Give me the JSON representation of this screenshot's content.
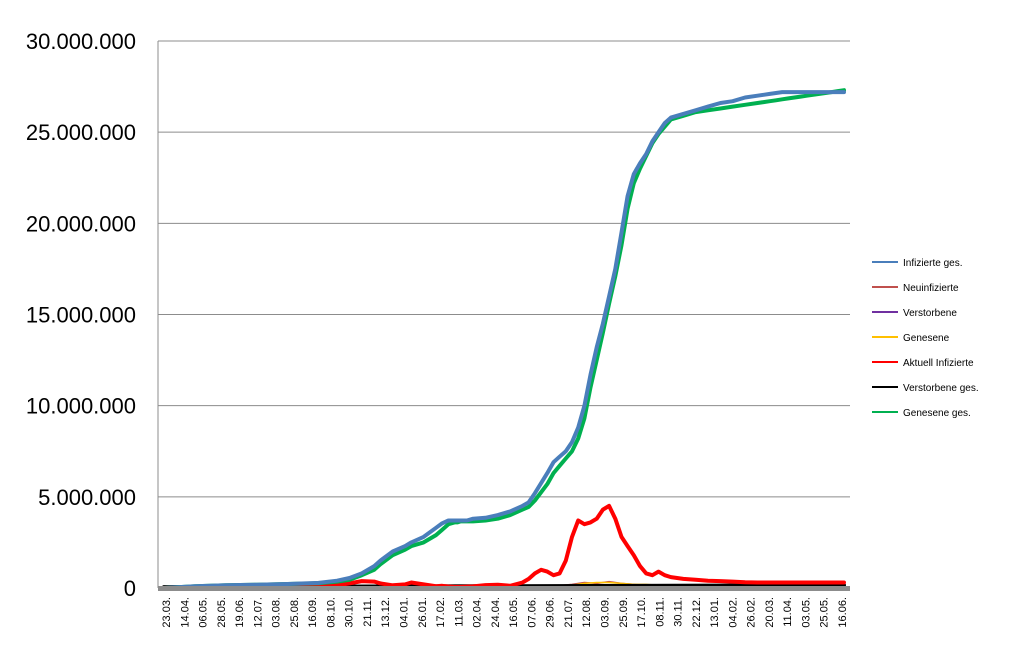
{
  "chart_data": {
    "type": "line",
    "title": "",
    "xlabel": "",
    "ylabel": "",
    "ylim": [
      0,
      30000000
    ],
    "grid": "horizontal",
    "legend_position": "right",
    "y_ticks": [
      {
        "value": 0,
        "label": "0"
      },
      {
        "value": 5000000,
        "label": "5.000.000"
      },
      {
        "value": 10000000,
        "label": "10.000.000"
      },
      {
        "value": 15000000,
        "label": "15.000.000"
      },
      {
        "value": 20000000,
        "label": "20.000.000"
      },
      {
        "value": 25000000,
        "label": "25.000.000"
      },
      {
        "value": 30000000,
        "label": "30.000.000"
      }
    ],
    "x_tick_labels": [
      "23.03.",
      "14.04.",
      "06.05.",
      "28.05.",
      "19.06.",
      "12.07.",
      "03.08.",
      "25.08.",
      "16.09.",
      "08.10.",
      "30.10.",
      "21.11.",
      "13.12.",
      "04.01.",
      "26.01.",
      "17.02.",
      "11.03.",
      "02.04.",
      "24.04.",
      "16.05.",
      "07.06.",
      "29.06.",
      "21.07.",
      "12.08.",
      "03.09.",
      "25.09.",
      "17.10.",
      "08.11.",
      "30.11.",
      "22.12.",
      "13.01.",
      "04.02.",
      "26.02.",
      "20.03.",
      "11.04.",
      "03.05.",
      "25.05.",
      "16.06."
    ],
    "series": [
      {
        "name": "Infizierte ges.",
        "color": "#4a7ebb",
        "x": [
          0,
          5,
          10,
          15,
          20,
          25,
          28,
          30,
          32,
          34,
          35,
          37,
          39,
          40,
          42,
          44,
          45,
          46,
          47,
          47.5,
          48,
          49,
          50,
          52,
          54,
          56,
          58,
          59,
          60,
          62,
          63,
          64,
          65,
          66,
          67,
          68,
          69,
          70,
          71,
          72,
          73,
          74,
          75,
          76,
          77,
          78,
          79,
          80,
          81,
          82,
          84,
          86,
          88,
          90,
          92,
          94,
          96,
          97,
          98,
          99,
          100,
          101,
          102,
          103,
          104,
          105,
          106,
          107,
          108,
          109,
          110
        ],
        "values": [
          0,
          100000,
          150000,
          180000,
          220000,
          280000,
          400000,
          550000,
          800000,
          1200000,
          1500000,
          2000000,
          2300000,
          2500000,
          2800000,
          3300000,
          3550000,
          3700000,
          3700000,
          3700000,
          3700000,
          3700000,
          3800000,
          3850000,
          4000000,
          4200000,
          4500000,
          4700000,
          5200000,
          6300000,
          6900000,
          7200000,
          7500000,
          8000000,
          8800000,
          10000000,
          11700000,
          13200000,
          14500000,
          16000000,
          17500000,
          19500000,
          21500000,
          22700000,
          23300000,
          23800000,
          24500000,
          25000000,
          25500000,
          25800000,
          26000000,
          26200000,
          26400000,
          26600000,
          26700000,
          26900000,
          27000000,
          27050000,
          27100000,
          27150000,
          27200000,
          27200000,
          27200000,
          27200000,
          27200000,
          27200000,
          27200000,
          27200000,
          27200000,
          27200000,
          27200000
        ]
      },
      {
        "name": "Genesene ges.",
        "color": "#00b050",
        "x": [
          0,
          5,
          10,
          15,
          20,
          25,
          28,
          30,
          32,
          34,
          35,
          37,
          39,
          40,
          42,
          44,
          45,
          46,
          47,
          47.5,
          48,
          49,
          50,
          52,
          54,
          56,
          58,
          59,
          60,
          62,
          63,
          64,
          65,
          66,
          67,
          68,
          69,
          70,
          71,
          72,
          73,
          74,
          75,
          76,
          77,
          78,
          79,
          80,
          81,
          82,
          84,
          86,
          88,
          90,
          92,
          94,
          96,
          97,
          98,
          99,
          100,
          101,
          102,
          103,
          104,
          105,
          106,
          107,
          108,
          109,
          110
        ],
        "values": [
          0,
          100000,
          150000,
          180000,
          220000,
          260000,
          350000,
          450000,
          700000,
          1000000,
          1300000,
          1800000,
          2100000,
          2300000,
          2500000,
          2900000,
          3200000,
          3500000,
          3600000,
          3600000,
          3650000,
          3650000,
          3650000,
          3700000,
          3800000,
          4000000,
          4300000,
          4450000,
          4800000,
          5700000,
          6300000,
          6700000,
          7100000,
          7500000,
          8200000,
          9300000,
          11000000,
          12500000,
          14000000,
          15600000,
          17100000,
          18800000,
          20800000,
          22200000,
          23000000,
          23700000,
          24400000,
          24900000,
          25300000,
          25700000,
          25900000,
          26100000,
          26200000,
          26300000,
          26400000,
          26500000,
          26600000,
          26650000,
          26700000,
          26750000,
          26800000,
          26850000,
          26900000,
          26950000,
          27000000,
          27050000,
          27100000,
          27150000,
          27200000,
          27250000,
          27300000
        ]
      },
      {
        "name": "Aktuell Infizierte",
        "color": "#ff0000",
        "x": [
          0,
          5,
          10,
          15,
          20,
          25,
          28,
          30,
          32,
          34,
          35,
          37,
          39,
          40,
          42,
          44,
          45,
          46,
          47,
          48,
          50,
          52,
          54,
          56,
          58,
          59,
          60,
          61,
          62,
          63,
          64,
          65,
          66,
          67,
          68,
          69,
          70,
          71,
          72,
          73,
          74,
          75,
          76,
          77,
          78,
          79,
          80,
          81,
          82,
          84,
          86,
          88,
          90,
          92,
          94,
          96,
          98,
          100,
          102,
          104,
          106,
          108,
          110
        ],
        "values": [
          0,
          50000,
          60000,
          50000,
          60000,
          100000,
          150000,
          250000,
          380000,
          350000,
          250000,
          150000,
          200000,
          300000,
          200000,
          100000,
          120000,
          80000,
          60000,
          60000,
          90000,
          160000,
          180000,
          120000,
          300000,
          500000,
          800000,
          1000000,
          900000,
          700000,
          800000,
          1500000,
          2800000,
          3700000,
          3500000,
          3600000,
          3800000,
          4300000,
          4500000,
          3800000,
          2800000,
          2300000,
          1800000,
          1200000,
          800000,
          700000,
          900000,
          700000,
          600000,
          500000,
          450000,
          400000,
          380000,
          350000,
          320000,
          300000,
          300000,
          300000,
          300000,
          300000,
          300000,
          300000,
          300000
        ]
      },
      {
        "name": "Verstorbene ges.",
        "color": "#000000",
        "x": [
          0,
          110
        ],
        "values": [
          50000,
          150000
        ]
      },
      {
        "name": "Neuinfizierte",
        "color": "#c0504d",
        "x": [
          0,
          60,
          66,
          68,
          70,
          72,
          74,
          76,
          78,
          80,
          82,
          110
        ],
        "values": [
          0,
          0,
          200000,
          300000,
          250000,
          350000,
          250000,
          200000,
          150000,
          100000,
          50000,
          0
        ]
      },
      {
        "name": "Verstorbene",
        "color": "#7030a0",
        "x": [
          0,
          110
        ],
        "values": [
          0,
          0
        ]
      },
      {
        "name": "Genesene",
        "color": "#ffc000",
        "x": [
          0,
          60,
          66,
          68,
          70,
          72,
          74,
          76,
          78,
          80,
          82,
          110
        ],
        "values": [
          0,
          0,
          150000,
          250000,
          300000,
          300000,
          250000,
          200000,
          200000,
          150000,
          100000,
          0
        ]
      }
    ],
    "legend": [
      {
        "name": "Infizierte ges.",
        "color": "#4a7ebb"
      },
      {
        "name": "Neuinfizierte",
        "color": "#c0504d"
      },
      {
        "name": "Verstorbene",
        "color": "#7030a0"
      },
      {
        "name": "Genesene",
        "color": "#ffc000"
      },
      {
        "name": "Aktuell Infizierte",
        "color": "#ff0000"
      },
      {
        "name": "Verstorbene ges.",
        "color": "#000000"
      },
      {
        "name": "Genesene ges.",
        "color": "#00b050"
      }
    ]
  }
}
